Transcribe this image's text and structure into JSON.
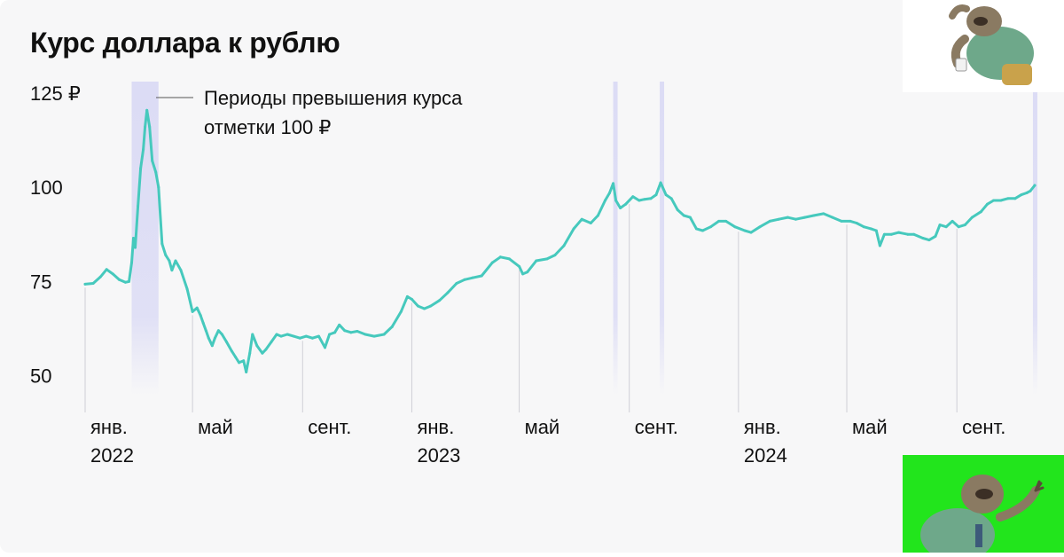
{
  "title": "Курс доллара к рублю",
  "legend": {
    "line1": "Периоды превышения курса",
    "line2": "отметки 100 ₽"
  },
  "colors": {
    "line": "#46c9bd",
    "highlight": "#dcdcf5",
    "text": "#111111",
    "grid": "#cfcfd6",
    "sticker_bg_bottom": "#22e51c"
  },
  "stickers": {
    "top": "sloth-sticker-icon",
    "bottom": "sloth-sticker-icon"
  },
  "chart_data": {
    "type": "line",
    "title": "Курс доллара к рублю",
    "ylim": [
      45,
      128
    ],
    "yticks": [
      {
        "value": 125,
        "label": "125 ₽"
      },
      {
        "value": 100,
        "label": "100"
      },
      {
        "value": 75,
        "label": "75"
      },
      {
        "value": 50,
        "label": "50"
      }
    ],
    "xticks": [
      {
        "date": "2022-01-01",
        "label": "янв.",
        "year": "2022"
      },
      {
        "date": "2022-05-01",
        "label": "май",
        "year": ""
      },
      {
        "date": "2022-09-01",
        "label": "сент.",
        "year": ""
      },
      {
        "date": "2023-01-01",
        "label": "янв.",
        "year": "2023"
      },
      {
        "date": "2023-05-01",
        "label": "май",
        "year": ""
      },
      {
        "date": "2023-09-01",
        "label": "сент.",
        "year": ""
      },
      {
        "date": "2024-01-01",
        "label": "янв.",
        "year": "2024"
      },
      {
        "date": "2024-05-01",
        "label": "май",
        "year": ""
      },
      {
        "date": "2024-09-01",
        "label": "сент.",
        "year": ""
      }
    ],
    "xrange": [
      "2022-01-01",
      "2024-11-27"
    ],
    "highlight_periods": [
      {
        "start": "2022-02-22",
        "end": "2022-03-24"
      },
      {
        "start": "2023-08-14",
        "end": "2023-08-16"
      },
      {
        "start": "2023-10-05",
        "end": "2023-10-08"
      },
      {
        "start": "2024-11-25",
        "end": "2024-11-27"
      }
    ],
    "series": [
      {
        "points": [
          [
            "2022-01-01",
            74.3
          ],
          [
            "2022-01-10",
            74.5
          ],
          [
            "2022-01-18",
            76.2
          ],
          [
            "2022-01-25",
            78.2
          ],
          [
            "2022-02-01",
            77.0
          ],
          [
            "2022-02-08",
            75.5
          ],
          [
            "2022-02-15",
            74.8
          ],
          [
            "2022-02-19",
            75.0
          ],
          [
            "2022-02-22",
            80.0
          ],
          [
            "2022-02-24",
            86.5
          ],
          [
            "2022-02-26",
            84.0
          ],
          [
            "2022-03-01",
            95.0
          ],
          [
            "2022-03-04",
            105.0
          ],
          [
            "2022-03-07",
            110.0
          ],
          [
            "2022-03-09",
            116.0
          ],
          [
            "2022-03-11",
            120.4
          ],
          [
            "2022-03-14",
            116.0
          ],
          [
            "2022-03-17",
            107.0
          ],
          [
            "2022-03-21",
            104.0
          ],
          [
            "2022-03-24",
            100.0
          ],
          [
            "2022-03-28",
            85.0
          ],
          [
            "2022-04-01",
            82.0
          ],
          [
            "2022-04-05",
            80.5
          ],
          [
            "2022-04-08",
            78.0
          ],
          [
            "2022-04-12",
            80.5
          ],
          [
            "2022-04-18",
            78.0
          ],
          [
            "2022-04-25",
            73.0
          ],
          [
            "2022-05-01",
            67.0
          ],
          [
            "2022-05-06",
            68.0
          ],
          [
            "2022-05-10",
            66.0
          ],
          [
            "2022-05-13",
            64.0
          ],
          [
            "2022-05-16",
            62.0
          ],
          [
            "2022-05-19",
            60.0
          ],
          [
            "2022-05-23",
            58.0
          ],
          [
            "2022-05-26",
            60.0
          ],
          [
            "2022-05-30",
            62.0
          ],
          [
            "2022-06-03",
            61.0
          ],
          [
            "2022-06-08",
            59.0
          ],
          [
            "2022-06-14",
            56.5
          ],
          [
            "2022-06-18",
            55.0
          ],
          [
            "2022-06-22",
            53.5
          ],
          [
            "2022-06-27",
            54.0
          ],
          [
            "2022-06-30",
            51.0
          ],
          [
            "2022-07-04",
            56.0
          ],
          [
            "2022-07-07",
            61.0
          ],
          [
            "2022-07-12",
            58.0
          ],
          [
            "2022-07-18",
            56.0
          ],
          [
            "2022-07-22",
            57.0
          ],
          [
            "2022-07-28",
            59.0
          ],
          [
            "2022-08-03",
            61.0
          ],
          [
            "2022-08-08",
            60.5
          ],
          [
            "2022-08-15",
            61.0
          ],
          [
            "2022-08-22",
            60.5
          ],
          [
            "2022-08-29",
            60.0
          ],
          [
            "2022-09-05",
            60.5
          ],
          [
            "2022-09-12",
            60.0
          ],
          [
            "2022-09-19",
            60.5
          ],
          [
            "2022-09-26",
            57.5
          ],
          [
            "2022-10-01",
            61.0
          ],
          [
            "2022-10-07",
            61.5
          ],
          [
            "2022-10-12",
            63.5
          ],
          [
            "2022-10-18",
            62.0
          ],
          [
            "2022-10-25",
            61.5
          ],
          [
            "2022-11-01",
            61.8
          ],
          [
            "2022-11-10",
            61.0
          ],
          [
            "2022-11-20",
            60.5
          ],
          [
            "2022-12-01",
            61.0
          ],
          [
            "2022-12-10",
            63.0
          ],
          [
            "2022-12-20",
            67.0
          ],
          [
            "2022-12-27",
            71.0
          ],
          [
            "2023-01-01",
            70.3
          ],
          [
            "2023-01-08",
            68.5
          ],
          [
            "2023-01-15",
            67.8
          ],
          [
            "2023-01-22",
            68.5
          ],
          [
            "2023-02-01",
            70.0
          ],
          [
            "2023-02-10",
            72.0
          ],
          [
            "2023-02-20",
            74.5
          ],
          [
            "2023-03-01",
            75.5
          ],
          [
            "2023-03-10",
            76.0
          ],
          [
            "2023-03-20",
            76.5
          ],
          [
            "2023-04-01",
            80.0
          ],
          [
            "2023-04-10",
            81.5
          ],
          [
            "2023-04-20",
            81.0
          ],
          [
            "2023-05-01",
            79.0
          ],
          [
            "2023-05-05",
            77.0
          ],
          [
            "2023-05-10",
            77.5
          ],
          [
            "2023-05-20",
            80.5
          ],
          [
            "2023-06-01",
            81.0
          ],
          [
            "2023-06-10",
            82.0
          ],
          [
            "2023-06-20",
            84.5
          ],
          [
            "2023-07-01",
            89.0
          ],
          [
            "2023-07-10",
            91.5
          ],
          [
            "2023-07-20",
            90.5
          ],
          [
            "2023-07-28",
            92.5
          ],
          [
            "2023-08-05",
            96.5
          ],
          [
            "2023-08-10",
            98.5
          ],
          [
            "2023-08-14",
            101.0
          ],
          [
            "2023-08-17",
            96.5
          ],
          [
            "2023-08-22",
            94.5
          ],
          [
            "2023-08-28",
            95.5
          ],
          [
            "2023-09-05",
            97.5
          ],
          [
            "2023-09-12",
            96.5
          ],
          [
            "2023-09-18",
            96.8
          ],
          [
            "2023-09-25",
            97.0
          ],
          [
            "2023-10-01",
            98.0
          ],
          [
            "2023-10-06",
            101.2
          ],
          [
            "2023-10-12",
            98.0
          ],
          [
            "2023-10-18",
            97.0
          ],
          [
            "2023-10-25",
            94.0
          ],
          [
            "2023-11-01",
            92.5
          ],
          [
            "2023-11-08",
            92.0
          ],
          [
            "2023-11-15",
            89.0
          ],
          [
            "2023-11-22",
            88.5
          ],
          [
            "2023-12-01",
            89.5
          ],
          [
            "2023-12-10",
            91.0
          ],
          [
            "2023-12-18",
            91.0
          ],
          [
            "2023-12-28",
            89.5
          ],
          [
            "2024-01-08",
            88.5
          ],
          [
            "2024-01-15",
            88.0
          ],
          [
            "2024-01-25",
            89.5
          ],
          [
            "2024-02-05",
            91.0
          ],
          [
            "2024-02-15",
            91.5
          ],
          [
            "2024-02-25",
            92.0
          ],
          [
            "2024-03-05",
            91.5
          ],
          [
            "2024-03-15",
            92.0
          ],
          [
            "2024-03-25",
            92.5
          ],
          [
            "2024-04-05",
            93.0
          ],
          [
            "2024-04-15",
            92.0
          ],
          [
            "2024-04-25",
            91.0
          ],
          [
            "2024-05-05",
            91.0
          ],
          [
            "2024-05-12",
            90.5
          ],
          [
            "2024-05-20",
            89.5
          ],
          [
            "2024-05-28",
            89.0
          ],
          [
            "2024-06-03",
            88.5
          ],
          [
            "2024-06-07",
            84.5
          ],
          [
            "2024-06-12",
            87.5
          ],
          [
            "2024-06-20",
            87.5
          ],
          [
            "2024-06-28",
            88.0
          ],
          [
            "2024-07-08",
            87.5
          ],
          [
            "2024-07-15",
            87.5
          ],
          [
            "2024-07-25",
            86.5
          ],
          [
            "2024-08-01",
            86.0
          ],
          [
            "2024-08-08",
            87.0
          ],
          [
            "2024-08-13",
            90.0
          ],
          [
            "2024-08-20",
            89.5
          ],
          [
            "2024-08-27",
            91.0
          ],
          [
            "2024-09-03",
            89.5
          ],
          [
            "2024-09-10",
            90.0
          ],
          [
            "2024-09-18",
            92.0
          ],
          [
            "2024-09-28",
            93.5
          ],
          [
            "2024-10-05",
            95.5
          ],
          [
            "2024-10-12",
            96.5
          ],
          [
            "2024-10-20",
            96.5
          ],
          [
            "2024-10-28",
            97.0
          ],
          [
            "2024-11-05",
            97.0
          ],
          [
            "2024-11-12",
            98.0
          ],
          [
            "2024-11-18",
            98.5
          ],
          [
            "2024-11-22",
            99.0
          ],
          [
            "2024-11-27",
            100.5
          ]
        ]
      }
    ]
  }
}
